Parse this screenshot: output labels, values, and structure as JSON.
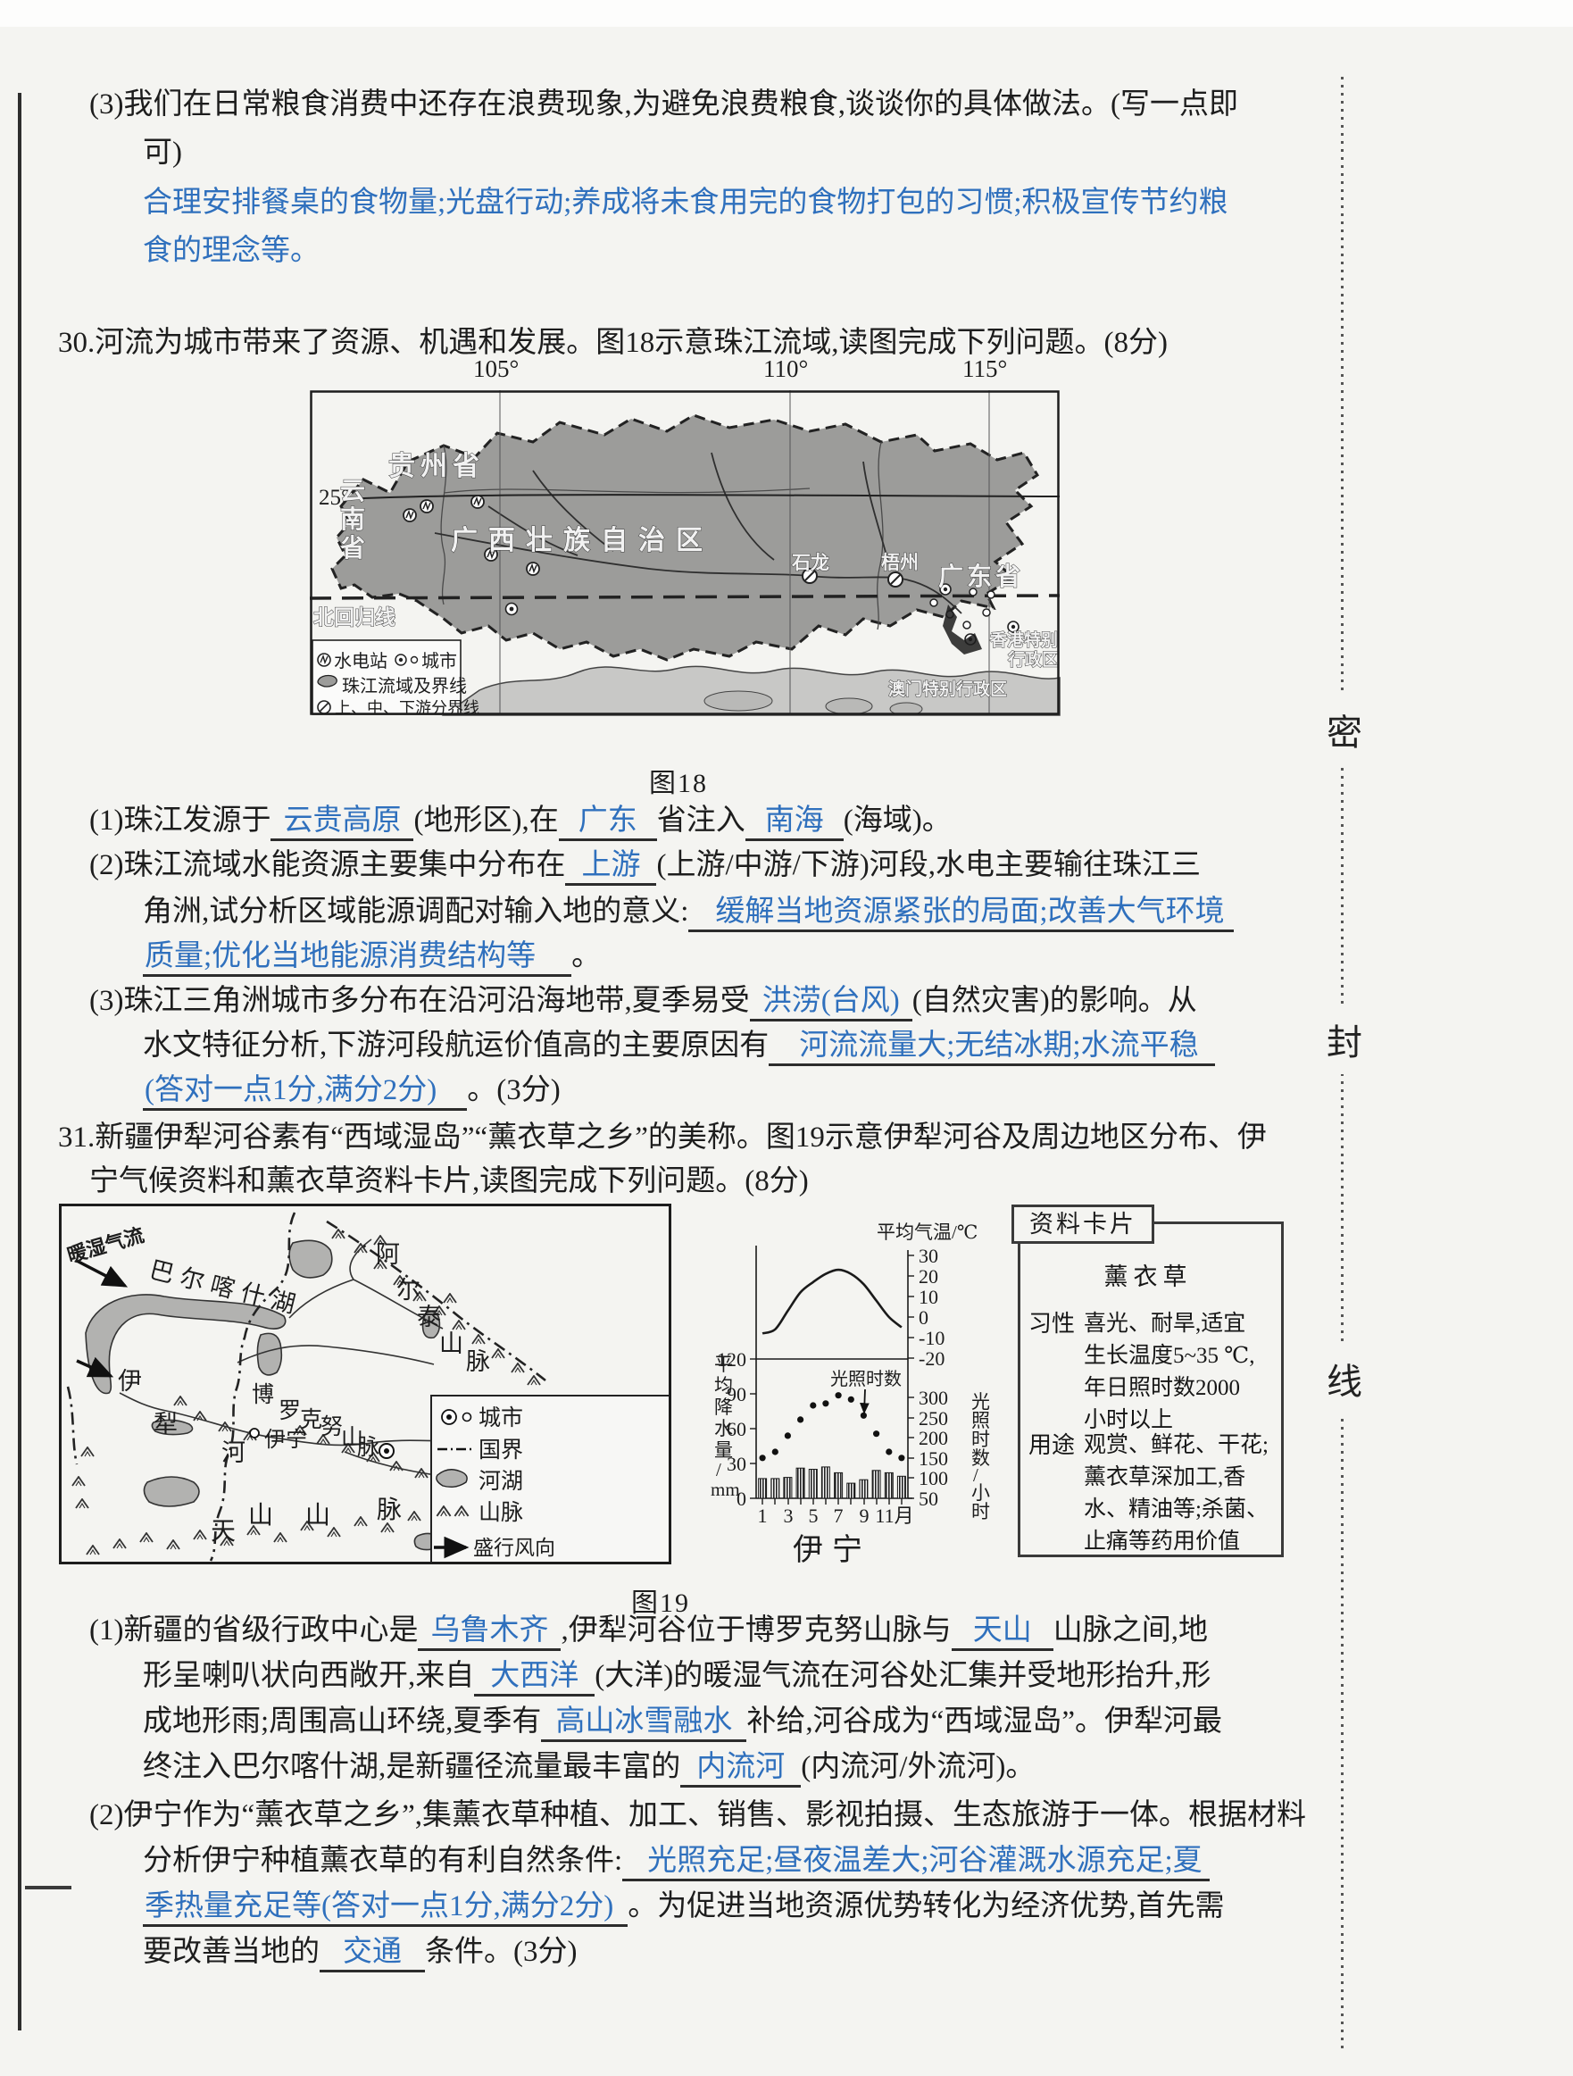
{
  "meta": {
    "fig18_caption": "图18",
    "fig19_caption": "图19"
  },
  "seal": {
    "chars": [
      "密",
      "封",
      "线"
    ]
  },
  "q29p3": {
    "l1": "(3)我们在日常粮食消费中还存在浪费现象,为避免浪费粮食,谈谈你的具体做法。(写一点即",
    "l2": "可)",
    "a1": "合理安排餐桌的食物量;光盘行动;养成将未食用完的食物打包的习惯;积极宣传节约粮",
    "a2": "食的理念等。"
  },
  "q30": {
    "heading": "30.河流为城市带来了资源、机遇和发展。图18示意珠江流域,读图完成下列问题。(8分)",
    "s1": {
      "t1": "(1)珠江发源于",
      "a1": "云贵高原",
      "t2": "(地形区),在",
      "a2": "广东",
      "t3": "省注入",
      "a3": "南海",
      "t4": "(海域)。"
    },
    "s2": {
      "t1": "(2)珠江流域水能资源主要集中分布在",
      "a1": "上游",
      "t2": "(上游/中游/下游)河段,水电主要输往珠江三",
      "l2": "角洲,试分析区域能源调配对输入地的意义:",
      "a2": "缓解当地资源紧张的局面;改善大气环境",
      "a3": "质量;优化当地能源消费结构等",
      "t3": "。"
    },
    "s3": {
      "t1": "(3)珠江三角洲城市多分布在沿河沿海地带,夏季易受",
      "a1": "洪涝(台风)",
      "t2": "(自然灾害)的影响。从",
      "l2": "水文特征分析,下游河段航运价值高的主要原因有",
      "a2": "河流流量大;无结冰期;水流平稳",
      "a3": "(答对一点1分,满分2分)",
      "t3": "。(3分)"
    }
  },
  "q31": {
    "heading1": "31.新疆伊犁河谷素有“西域湿岛”“薰衣草之乡”的美称。图19示意伊犁河谷及周边地区分布、伊",
    "heading2": "宁气候资料和薰衣草资料卡片,读图完成下列问题。(8分)",
    "s1": {
      "t1": "(1)新疆的省级行政中心是",
      "a1": "乌鲁木齐",
      "t2": ",伊犁河谷位于博罗克努山脉与",
      "a2": "天山",
      "t3": "山脉之间,地",
      "l2": "形呈喇叭状向西敞开,来自",
      "a3": "大西洋",
      "t4": "(大洋)的暖湿气流在河谷处汇集并受地形抬升,形",
      "l3": "成地形雨;周围高山环绕,夏季有",
      "a4": "高山冰雪融水",
      "t5": "补给,河谷成为“西域湿岛”。伊犁河最",
      "l4": "终注入巴尔喀什湖,是新疆径流量最丰富的",
      "a5": "内流河",
      "t6": "(内流河/外流河)。"
    },
    "s2": {
      "t1": "(2)伊宁作为“薰衣草之乡”,集薰衣草种植、加工、销售、影视拍摄、生态旅游于一体。根据材料",
      "l2": "分析伊宁种植薰衣草的有利自然条件:",
      "a1": "光照充足;昼夜温差大;河谷灌溉水源充足;夏",
      "a2": "季热量充足等(答对一点1分,满分2分)",
      "t2": "。为促进当地资源优势转化为经济优势,首先需",
      "l4": "要改善当地的",
      "a3": "交通",
      "t3": "条件。(3分)"
    }
  },
  "map18": {
    "lon": [
      "105°",
      "110°",
      "115°"
    ],
    "lat": "25°",
    "tropic": "北回归线",
    "guizhou": "贵州省",
    "yunnan": [
      "云",
      "南",
      "省"
    ],
    "guangxi": "广西壮族自治区",
    "guangdong": "广东省",
    "shilong": "石龙",
    "wuzhou": "梧州",
    "hk": [
      "香港特别",
      "行政区"
    ],
    "macau": "澳门特别行政区",
    "legend": {
      "hydro": "水电站",
      "city": "城市",
      "basin": "珠江流域及界线",
      "divide": "上、中、下游分界线"
    }
  },
  "map19": {
    "warm": "暖湿气流",
    "lake": "巴尔喀什湖",
    "altai": [
      "阿",
      "尔",
      "泰",
      "山",
      "脉"
    ],
    "yili": [
      "伊",
      "犁",
      "河"
    ],
    "boluo": [
      "博",
      "罗",
      "克",
      "努",
      "山",
      "脉"
    ],
    "yining": "伊宁",
    "tianshan": [
      "天",
      "山",
      "山",
      "脉"
    ],
    "legend": {
      "city": "城市",
      "border": "国界",
      "lake": "河湖",
      "mtn": "山脉",
      "wind": "盛行风向"
    }
  },
  "chart": {
    "temp_label": "平均气温/℃",
    "precip_chars": [
      "平",
      "均",
      "降",
      "水",
      "量",
      "/",
      "mm"
    ],
    "sun_chars": [
      "光",
      "照",
      "时",
      "数",
      "/",
      "小",
      "时"
    ],
    "sun_note": "光照时数",
    "temp_ticks": [
      "30",
      "20",
      "10",
      "0",
      "-10",
      "-20"
    ],
    "precip_ticks": [
      "120",
      "90",
      "60",
      "30",
      "0"
    ],
    "sun_ticks": [
      "300",
      "250",
      "200",
      "150",
      "100",
      "50"
    ],
    "x_ticks": [
      "1",
      "3",
      "5",
      "7",
      "9",
      "11月"
    ],
    "city": "伊宁"
  },
  "chart_data": {
    "type": "combo",
    "title": "伊宁",
    "x_months": [
      1,
      2,
      3,
      4,
      5,
      6,
      7,
      8,
      9,
      10,
      11,
      12
    ],
    "series": [
      {
        "name": "平均气温/℃",
        "type": "line",
        "values": [
          -8,
          -6,
          3,
          12,
          17,
          21,
          23,
          21,
          16,
          8,
          0,
          -5
        ],
        "axis_range": [
          -20,
          30
        ]
      },
      {
        "name": "平均降水量/mm",
        "type": "bar",
        "values": [
          17,
          17,
          18,
          26,
          25,
          27,
          22,
          13,
          16,
          24,
          22,
          19
        ],
        "axis_range": [
          0,
          120
        ]
      },
      {
        "name": "光照时数/小时",
        "type": "scatter",
        "values": [
          150,
          165,
          205,
          245,
          280,
          285,
          305,
          295,
          255,
          210,
          165,
          150
        ],
        "axis_range": [
          50,
          300
        ]
      }
    ]
  },
  "card": {
    "title": "资料卡片",
    "name": "薰衣草",
    "trait_label": "习性",
    "trait": [
      "喜光、耐旱,适宜",
      "生长温度5~35 ℃,",
      "年日照时数2000",
      "小时以上"
    ],
    "use_label": "用途",
    "use": [
      "观赏、鲜花、干花;",
      "薰衣草深加工,香",
      "水、精油等;杀菌、",
      "止痛等药用价值"
    ]
  }
}
